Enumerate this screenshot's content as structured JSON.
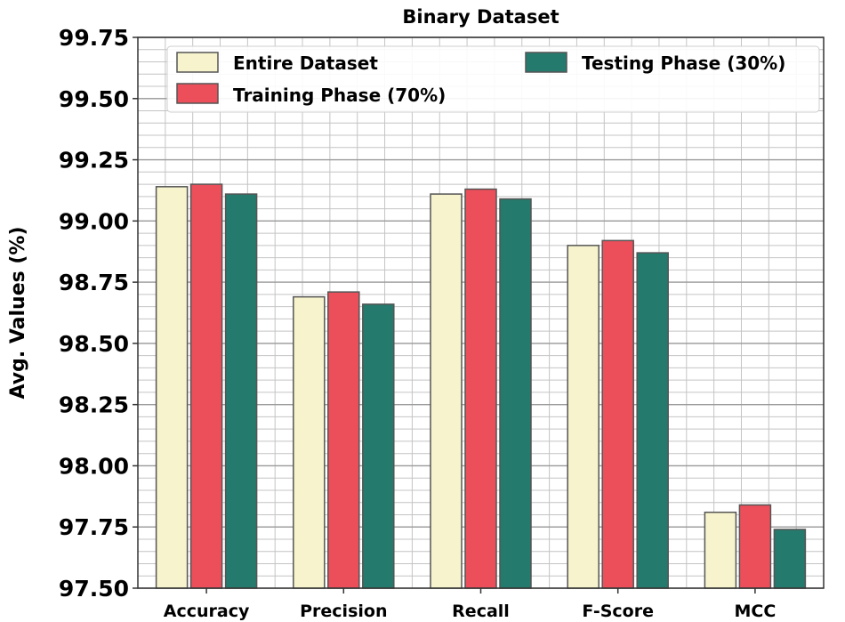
{
  "chart_data": {
    "type": "bar",
    "title": "Binary Dataset",
    "xlabel": "",
    "ylabel": "Avg. Values (%)",
    "ylim": [
      97.5,
      99.75
    ],
    "yticks": [
      "97.50",
      "97.75",
      "98.00",
      "98.25",
      "98.50",
      "98.75",
      "99.00",
      "99.25",
      "99.50",
      "99.75"
    ],
    "grid": true,
    "legend_position": "top-right",
    "categories": [
      "Accuracy",
      "Precision",
      "Recall",
      "F-Score",
      "MCC"
    ],
    "series": [
      {
        "name": "Entire Dataset",
        "color": "#f7f4cd",
        "values": [
          99.14,
          98.69,
          99.11,
          98.9,
          97.81
        ]
      },
      {
        "name": "Training Phase (70%)",
        "color": "#ec4f5a",
        "values": [
          99.15,
          98.71,
          99.13,
          98.92,
          97.84
        ]
      },
      {
        "name": "Testing Phase (30%)",
        "color": "#247a6c",
        "values": [
          99.11,
          98.66,
          99.09,
          98.87,
          97.74
        ]
      }
    ]
  }
}
